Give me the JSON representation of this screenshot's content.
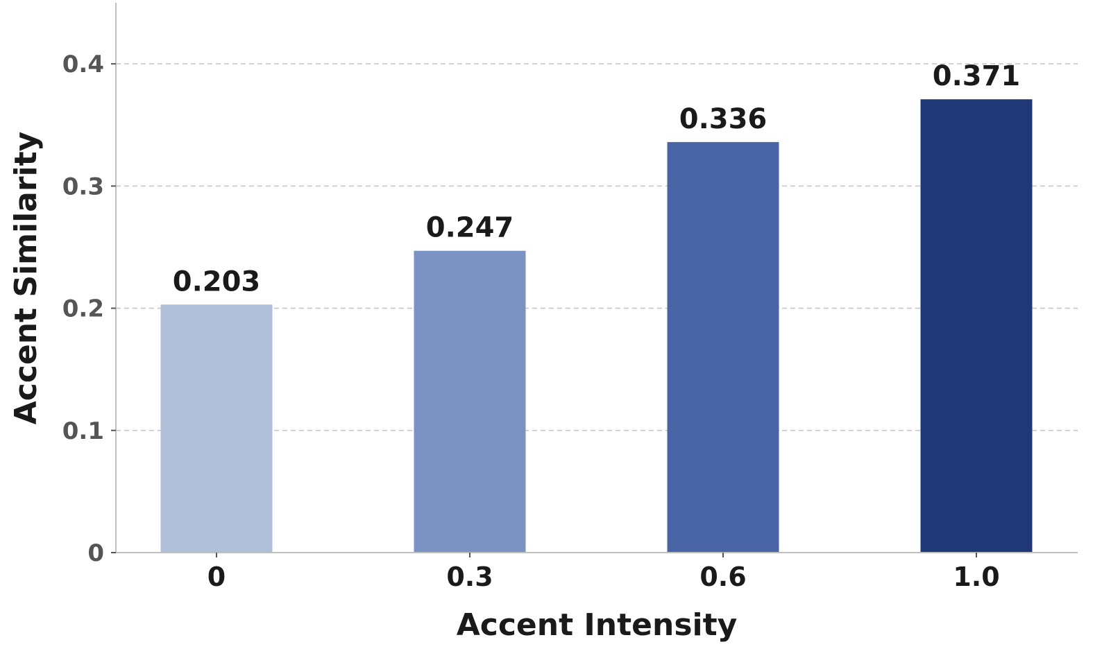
{
  "chart_data": {
    "type": "bar",
    "title": "",
    "xlabel": "Accent Intensity",
    "ylabel": "Accent Similarity",
    "categories": [
      "0",
      "0.3",
      "0.6",
      "1.0"
    ],
    "values": [
      0.203,
      0.247,
      0.336,
      0.371
    ],
    "value_labels": [
      "0.203",
      "0.247",
      "0.336",
      "0.371"
    ],
    "colors": [
      "#b0bfd9",
      "#7b93c3",
      "#4a65a6",
      "#1f3878"
    ],
    "ylim": [
      0,
      0.45
    ],
    "yticks": [
      0,
      0.1,
      0.2,
      0.3,
      0.4
    ],
    "ytick_labels": [
      "0",
      "0.1",
      "0.2",
      "0.3",
      "0.4"
    ],
    "grid": "y-dashed",
    "legend": "none"
  }
}
